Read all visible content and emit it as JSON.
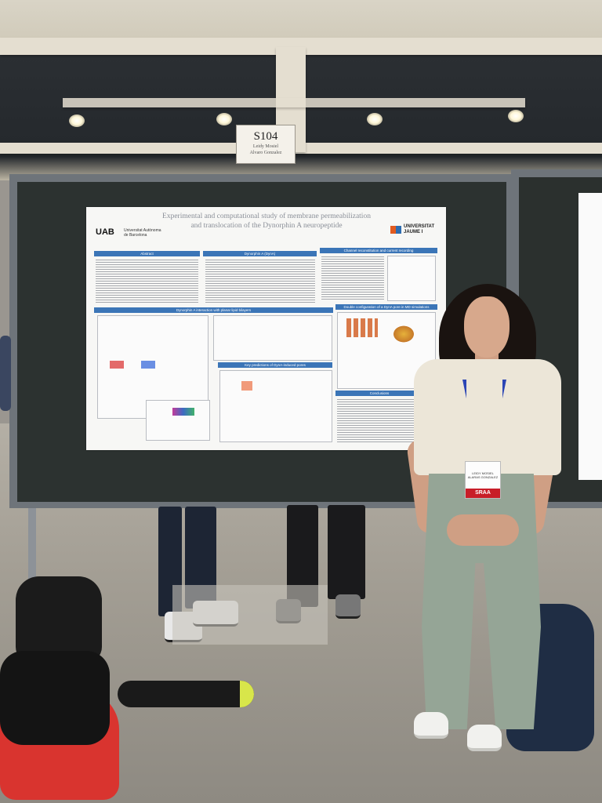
{
  "sign": {
    "code": "S104",
    "name_1": "Leidy Mosiel",
    "name_2": "Alvaro Gonzalez"
  },
  "poster": {
    "title_line_1": "Experimental and computational study of membrane permeabilization",
    "title_line_2": "and translocation of the Dynorphin A neuropeptide",
    "uab_logo": "UAB",
    "uab_name_1": "Universitat Autònoma",
    "uab_name_2": "de Barcelona",
    "uji_name_1": "UNIVERSITAT",
    "uji_name_2": "JAUME I",
    "headers": {
      "abstract": "Abstract",
      "dynorphin": "Dynorphin A (DynA)",
      "channel": "Channel reconstitution and current recording",
      "interaction": "Dynorphin A interaction with planar lipid bilayers",
      "double": "Double configuration of a DynA pore in MD simulations",
      "key": "Key predictions of DynA-induced pores",
      "conclusions": "Conclusions"
    }
  },
  "badge": {
    "line_1": "LEIDY MOSIEL",
    "line_2": "ALARAS GONZALEZ",
    "label": "SRAA"
  },
  "colors": {
    "poster_header": "#3b75b7",
    "board": "#2c3230",
    "lanyard": "#2b45b5",
    "badge_label": "#c81d28"
  }
}
